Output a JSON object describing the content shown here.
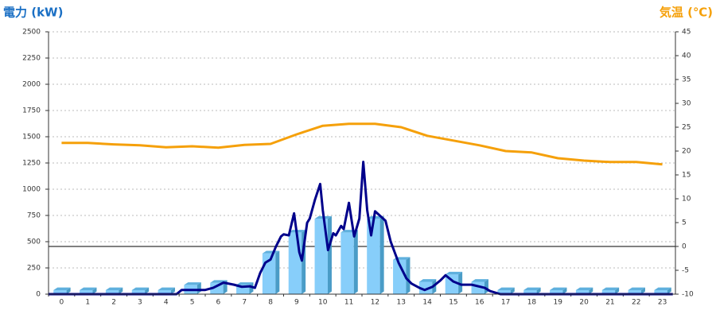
{
  "chart_data": {
    "type": "combo",
    "y_title": "電力 (kW)",
    "y2_title": "気温 (℃)",
    "categories": [
      "0",
      "1",
      "2",
      "3",
      "4",
      "5",
      "6",
      "7",
      "8",
      "9",
      "10",
      "11",
      "12",
      "13",
      "14",
      "15",
      "16",
      "17",
      "18",
      "19",
      "20",
      "21",
      "22",
      "23"
    ],
    "xlim": [
      -0.5,
      23.5
    ],
    "ylim": [
      0,
      2500
    ],
    "yticks": [
      0,
      250,
      500,
      750,
      1000,
      1250,
      1500,
      1750,
      2000,
      2250,
      2500
    ],
    "y2lim": [
      -10,
      45
    ],
    "y2ticks": [
      -10,
      -5,
      0,
      5,
      10,
      15,
      20,
      25,
      30,
      35,
      40,
      45
    ],
    "grid": true,
    "bars": {
      "color": "#87cefa",
      "values": [
        0,
        0,
        0,
        0,
        0,
        50,
        70,
        50,
        350,
        550,
        680,
        550,
        680,
        290,
        80,
        150,
        80,
        0,
        0,
        0,
        0,
        0,
        0,
        0
      ]
    },
    "power_line": {
      "color": "#00008b",
      "x": [
        -0.5,
        4.4,
        4.6,
        5.5,
        5.8,
        6.2,
        6.6,
        6.9,
        7.2,
        7.4,
        7.6,
        7.8,
        8.0,
        8.2,
        8.4,
        8.5,
        8.7,
        8.9,
        9.1,
        9.2,
        9.4,
        9.5,
        9.7,
        9.9,
        10.0,
        10.2,
        10.4,
        10.5,
        10.7,
        10.8,
        11.0,
        11.2,
        11.4,
        11.55,
        11.7,
        11.85,
        12.0,
        12.4,
        12.6,
        12.9,
        13.2,
        13.4,
        13.7,
        13.9,
        14.2,
        14.5,
        14.7,
        15.0,
        15.3,
        15.7,
        16.2,
        16.4,
        16.8,
        23.4
      ],
      "values": [
        0,
        0,
        40,
        40,
        60,
        110,
        90,
        70,
        75,
        60,
        200,
        300,
        330,
        450,
        550,
        570,
        560,
        770,
        400,
        320,
        680,
        720,
        900,
        1050,
        800,
        420,
        580,
        560,
        650,
        620,
        870,
        550,
        720,
        1260,
        800,
        560,
        790,
        700,
        500,
        300,
        150,
        100,
        60,
        40,
        70,
        130,
        180,
        120,
        90,
        90,
        60,
        30,
        0,
        0
      ]
    },
    "temperature": {
      "color": "#f5a00a",
      "axis": "y2",
      "values": [
        21.7,
        21.7,
        21.4,
        21.2,
        20.8,
        21.0,
        20.7,
        21.3,
        21.5,
        23.5,
        25.3,
        25.7,
        25.7,
        25.0,
        23.2,
        22.2,
        21.2,
        20.0,
        19.7,
        18.5,
        18.0,
        17.7,
        17.7,
        17.2
      ]
    }
  }
}
